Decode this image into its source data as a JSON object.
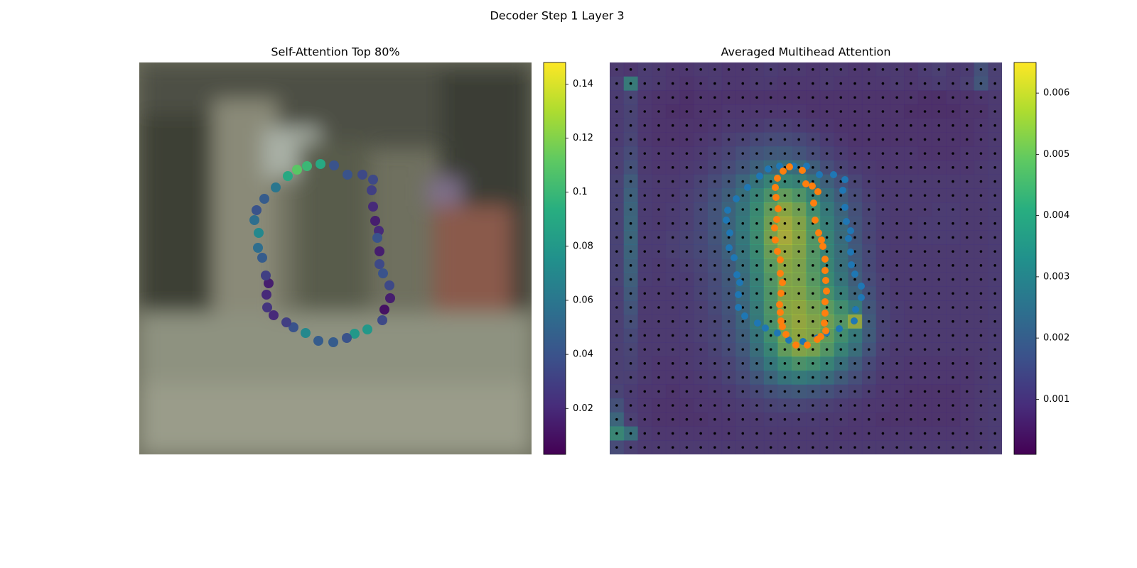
{
  "title": "Decoder Step 1 Layer 3",
  "chart_data": [
    {
      "type": "scatter",
      "title": "Self-Attention Top 80%",
      "colormap": "viridis",
      "xlim": [
        0,
        552
      ],
      "ylim": [
        552,
        0
      ],
      "x": [
        255,
        274,
        293,
        314,
        329,
        327,
        329,
        332,
        337,
        335,
        338,
        338,
        343,
        352,
        353,
        345,
        342,
        321,
        303,
        292,
        273,
        252,
        234,
        217,
        207,
        189,
        180,
        179,
        182,
        178,
        173,
        167,
        168,
        162,
        165,
        176,
        192,
        209,
        222,
        236
      ],
      "y": [
        143,
        145,
        158,
        158,
        165,
        180,
        203,
        223,
        237,
        247,
        266,
        284,
        297,
        314,
        332,
        348,
        363,
        376,
        382,
        388,
        394,
        392,
        381,
        373,
        366,
        356,
        345,
        327,
        311,
        300,
        275,
        261,
        240,
        222,
        208,
        192,
        176,
        160,
        151,
        146
      ],
      "values": [
        0.09,
        0.04,
        0.04,
        0.035,
        0.035,
        0.03,
        0.02,
        0.015,
        0.02,
        0.04,
        0.015,
        0.035,
        0.04,
        0.035,
        0.015,
        0.01,
        0.035,
        0.08,
        0.08,
        0.04,
        0.045,
        0.045,
        0.07,
        0.04,
        0.03,
        0.02,
        0.025,
        0.02,
        0.015,
        0.03,
        0.045,
        0.055,
        0.07,
        0.055,
        0.04,
        0.045,
        0.06,
        0.09,
        0.11,
        0.1
      ],
      "clim": [
        0.003,
        0.148
      ],
      "cticks": [
        0.02,
        0.04,
        0.06,
        0.08,
        0.1,
        0.12,
        0.14
      ]
    },
    {
      "type": "heatmap",
      "title": "Averaged Multihead Attention",
      "colormap": "viridis",
      "xlim": [
        0,
        552
      ],
      "ylim": [
        552,
        0
      ],
      "clim": [
        0.0001,
        0.0065
      ],
      "cticks": [
        0.001,
        0.002,
        0.003,
        0.004,
        0.005,
        0.006
      ],
      "z": [
        [
          0.001,
          0.0009,
          0.0011,
          0.001,
          0.0009,
          0.0009,
          0.001,
          0.001,
          0.0009,
          0.0009,
          0.001,
          0.0011,
          0.001,
          0.001,
          0.0009,
          0.001,
          0.001,
          0.0009,
          0.0009,
          0.001,
          0.001,
          0.0009,
          0.0011,
          0.0012,
          0.001,
          0.0011,
          0.0018,
          0.0012
        ],
        [
          0.0012,
          0.0035,
          0.0011,
          0.001,
          0.0009,
          0.0008,
          0.0009,
          0.001,
          0.0009,
          0.0009,
          0.001,
          0.001,
          0.0009,
          0.0009,
          0.0009,
          0.001,
          0.0009,
          0.0009,
          0.0009,
          0.0009,
          0.001,
          0.0009,
          0.001,
          0.0011,
          0.001,
          0.0012,
          0.002,
          0.0012
        ],
        [
          0.0011,
          0.0014,
          0.0009,
          0.0008,
          0.0008,
          0.0007,
          0.0008,
          0.0008,
          0.0008,
          0.0008,
          0.0008,
          0.0008,
          0.0008,
          0.0008,
          0.0008,
          0.0008,
          0.0008,
          0.0008,
          0.0008,
          0.0008,
          0.0008,
          0.0008,
          0.0007,
          0.0007,
          0.0008,
          0.0008,
          0.0009,
          0.001
        ],
        [
          0.0011,
          0.0013,
          0.0009,
          0.0008,
          0.0007,
          0.0007,
          0.0008,
          0.0008,
          0.0009,
          0.0009,
          0.0009,
          0.0009,
          0.0009,
          0.0009,
          0.0008,
          0.0008,
          0.0008,
          0.0008,
          0.0008,
          0.0008,
          0.0008,
          0.0007,
          0.0007,
          0.0007,
          0.0007,
          0.0008,
          0.0008,
          0.001
        ],
        [
          0.0011,
          0.0013,
          0.0009,
          0.0008,
          0.0008,
          0.0008,
          0.0008,
          0.0009,
          0.001,
          0.001,
          0.0011,
          0.0012,
          0.0012,
          0.0011,
          0.001,
          0.0009,
          0.0008,
          0.0008,
          0.0008,
          0.0008,
          0.0008,
          0.0008,
          0.0008,
          0.0008,
          0.0008,
          0.0008,
          0.0009,
          0.001
        ],
        [
          0.0011,
          0.0014,
          0.0009,
          0.0008,
          0.0008,
          0.0008,
          0.0009,
          0.001,
          0.0012,
          0.0013,
          0.0015,
          0.0016,
          0.0016,
          0.0015,
          0.0013,
          0.0011,
          0.0009,
          0.0008,
          0.0008,
          0.0008,
          0.0008,
          0.0008,
          0.0008,
          0.0008,
          0.0008,
          0.0008,
          0.0009,
          0.001
        ],
        [
          0.0012,
          0.0016,
          0.001,
          0.0009,
          0.0009,
          0.0009,
          0.001,
          0.0012,
          0.0014,
          0.0017,
          0.0019,
          0.0021,
          0.0021,
          0.0019,
          0.0016,
          0.0013,
          0.0011,
          0.0009,
          0.0009,
          0.0009,
          0.0009,
          0.0009,
          0.0008,
          0.0008,
          0.0008,
          0.0009,
          0.0009,
          0.001
        ],
        [
          0.0012,
          0.0018,
          0.001,
          0.0009,
          0.0009,
          0.001,
          0.0011,
          0.0013,
          0.0016,
          0.002,
          0.0024,
          0.0027,
          0.003,
          0.0028,
          0.0023,
          0.0017,
          0.0013,
          0.0011,
          0.001,
          0.0009,
          0.0009,
          0.0009,
          0.0009,
          0.0009,
          0.0009,
          0.0009,
          0.001,
          0.0011
        ],
        [
          0.0013,
          0.0022,
          0.0011,
          0.001,
          0.001,
          0.0011,
          0.0013,
          0.0016,
          0.002,
          0.0026,
          0.0032,
          0.0038,
          0.004,
          0.0037,
          0.0031,
          0.0024,
          0.0018,
          0.0014,
          0.0011,
          0.001,
          0.001,
          0.001,
          0.001,
          0.001,
          0.001,
          0.001,
          0.001,
          0.0011
        ],
        [
          0.0013,
          0.0024,
          0.0011,
          0.001,
          0.001,
          0.0012,
          0.0014,
          0.0018,
          0.0023,
          0.003,
          0.0038,
          0.0045,
          0.005,
          0.0046,
          0.0038,
          0.003,
          0.0022,
          0.0016,
          0.0012,
          0.001,
          0.001,
          0.001,
          0.001,
          0.001,
          0.001,
          0.001,
          0.001,
          0.0011
        ],
        [
          0.0013,
          0.0025,
          0.0011,
          0.001,
          0.0011,
          0.0012,
          0.0015,
          0.0019,
          0.0025,
          0.0032,
          0.0041,
          0.005,
          0.0056,
          0.0052,
          0.0043,
          0.0034,
          0.0025,
          0.0018,
          0.0013,
          0.0011,
          0.001,
          0.001,
          0.001,
          0.0011,
          0.0011,
          0.001,
          0.001,
          0.0011
        ],
        [
          0.0013,
          0.0026,
          0.0011,
          0.001,
          0.0011,
          0.0012,
          0.0015,
          0.0019,
          0.0025,
          0.0033,
          0.0042,
          0.0052,
          0.006,
          0.0055,
          0.0046,
          0.0036,
          0.0027,
          0.0019,
          0.0014,
          0.0011,
          0.001,
          0.001,
          0.0011,
          0.0011,
          0.0011,
          0.001,
          0.001,
          0.0011
        ],
        [
          0.0013,
          0.0026,
          0.0011,
          0.0011,
          0.0012,
          0.0013,
          0.0015,
          0.0019,
          0.0025,
          0.0033,
          0.0042,
          0.0053,
          0.0061,
          0.0056,
          0.0047,
          0.0038,
          0.0028,
          0.002,
          0.0014,
          0.0011,
          0.001,
          0.001,
          0.0011,
          0.0011,
          0.0011,
          0.001,
          0.001,
          0.0011
        ],
        [
          0.0013,
          0.0025,
          0.0011,
          0.0011,
          0.0012,
          0.0013,
          0.0015,
          0.0018,
          0.0024,
          0.0032,
          0.0041,
          0.0051,
          0.0058,
          0.0055,
          0.0047,
          0.0038,
          0.0029,
          0.0021,
          0.0015,
          0.0011,
          0.001,
          0.001,
          0.001,
          0.001,
          0.001,
          0.001,
          0.001,
          0.0011
        ],
        [
          0.0013,
          0.0024,
          0.0011,
          0.001,
          0.0011,
          0.0012,
          0.0014,
          0.0017,
          0.0022,
          0.003,
          0.0039,
          0.0049,
          0.0056,
          0.0054,
          0.0047,
          0.0039,
          0.003,
          0.0022,
          0.0015,
          0.0011,
          0.001,
          0.001,
          0.001,
          0.001,
          0.001,
          0.001,
          0.001,
          0.0011
        ],
        [
          0.0013,
          0.0023,
          0.0011,
          0.001,
          0.0011,
          0.0011,
          0.0013,
          0.0016,
          0.0021,
          0.0028,
          0.0037,
          0.0047,
          0.0055,
          0.0054,
          0.0048,
          0.0041,
          0.0032,
          0.0023,
          0.0016,
          0.0012,
          0.001,
          0.001,
          0.001,
          0.001,
          0.001,
          0.001,
          0.001,
          0.0011
        ],
        [
          0.0012,
          0.0021,
          0.001,
          0.001,
          0.001,
          0.0011,
          0.0013,
          0.0016,
          0.002,
          0.0027,
          0.0036,
          0.0046,
          0.0055,
          0.0055,
          0.005,
          0.0044,
          0.0036,
          0.0026,
          0.0018,
          0.0012,
          0.001,
          0.001,
          0.001,
          0.001,
          0.001,
          0.001,
          0.001,
          0.0011
        ],
        [
          0.0012,
          0.0019,
          0.001,
          0.001,
          0.001,
          0.0011,
          0.0012,
          0.0015,
          0.0019,
          0.0026,
          0.0035,
          0.0046,
          0.0056,
          0.0057,
          0.0053,
          0.0049,
          0.0043,
          0.0035,
          0.002,
          0.0013,
          0.0011,
          0.001,
          0.001,
          0.001,
          0.001,
          0.001,
          0.001,
          0.0011
        ],
        [
          0.0012,
          0.0017,
          0.001,
          0.001,
          0.001,
          0.0011,
          0.0012,
          0.0014,
          0.0018,
          0.0025,
          0.0034,
          0.0045,
          0.0055,
          0.0058,
          0.0055,
          0.0052,
          0.0047,
          0.0058,
          0.0022,
          0.0013,
          0.0011,
          0.001,
          0.001,
          0.001,
          0.001,
          0.001,
          0.001,
          0.0011
        ],
        [
          0.0012,
          0.0015,
          0.001,
          0.001,
          0.001,
          0.0011,
          0.0012,
          0.0014,
          0.0017,
          0.0023,
          0.0032,
          0.0043,
          0.0053,
          0.0057,
          0.0055,
          0.005,
          0.0043,
          0.0034,
          0.0022,
          0.0013,
          0.0011,
          0.001,
          0.001,
          0.001,
          0.001,
          0.001,
          0.001,
          0.0011
        ],
        [
          0.0012,
          0.0014,
          0.001,
          0.001,
          0.001,
          0.001,
          0.0011,
          0.0013,
          0.0016,
          0.0021,
          0.0029,
          0.0039,
          0.005,
          0.0055,
          0.0053,
          0.0047,
          0.0038,
          0.0029,
          0.0019,
          0.0012,
          0.001,
          0.001,
          0.001,
          0.001,
          0.001,
          0.001,
          0.001,
          0.0011
        ],
        [
          0.0012,
          0.0013,
          0.001,
          0.0009,
          0.0009,
          0.001,
          0.0011,
          0.0012,
          0.0014,
          0.0018,
          0.0025,
          0.0033,
          0.0041,
          0.0045,
          0.0043,
          0.0038,
          0.003,
          0.0022,
          0.0015,
          0.0011,
          0.001,
          0.0009,
          0.0009,
          0.0009,
          0.0009,
          0.0009,
          0.001,
          0.0011
        ],
        [
          0.0012,
          0.0012,
          0.001,
          0.0009,
          0.0009,
          0.0009,
          0.001,
          0.0011,
          0.0013,
          0.0016,
          0.002,
          0.0026,
          0.0032,
          0.0034,
          0.0032,
          0.0028,
          0.0022,
          0.0017,
          0.0013,
          0.001,
          0.0009,
          0.0009,
          0.0009,
          0.0009,
          0.0009,
          0.0009,
          0.001,
          0.0011
        ],
        [
          0.0013,
          0.0011,
          0.0009,
          0.0009,
          0.0008,
          0.0009,
          0.0009,
          0.001,
          0.0011,
          0.0013,
          0.0015,
          0.0018,
          0.002,
          0.0021,
          0.002,
          0.0018,
          0.0015,
          0.0013,
          0.0011,
          0.0009,
          0.0009,
          0.0008,
          0.0008,
          0.0008,
          0.0008,
          0.0009,
          0.001,
          0.0011
        ],
        [
          0.0018,
          0.0011,
          0.0009,
          0.0008,
          0.0008,
          0.0008,
          0.0009,
          0.0009,
          0.001,
          0.0011,
          0.0012,
          0.0013,
          0.0014,
          0.0014,
          0.0013,
          0.0012,
          0.0011,
          0.001,
          0.0009,
          0.0009,
          0.0008,
          0.0008,
          0.0008,
          0.0008,
          0.0008,
          0.0009,
          0.001,
          0.0011
        ],
        [
          0.0026,
          0.0012,
          0.0009,
          0.0008,
          0.0008,
          0.0008,
          0.0008,
          0.0009,
          0.0009,
          0.001,
          0.001,
          0.0011,
          0.0011,
          0.0011,
          0.0011,
          0.001,
          0.001,
          0.0009,
          0.0009,
          0.0008,
          0.0008,
          0.0008,
          0.0008,
          0.0008,
          0.0008,
          0.0009,
          0.001,
          0.0011
        ],
        [
          0.004,
          0.003,
          0.001,
          0.0009,
          0.0009,
          0.0009,
          0.0009,
          0.0009,
          0.0009,
          0.001,
          0.001,
          0.001,
          0.001,
          0.001,
          0.001,
          0.001,
          0.0009,
          0.0009,
          0.0009,
          0.0009,
          0.0009,
          0.0009,
          0.0009,
          0.0009,
          0.0009,
          0.0009,
          0.001,
          0.0011
        ],
        [
          0.0016,
          0.0012,
          0.001,
          0.001,
          0.001,
          0.001,
          0.001,
          0.001,
          0.001,
          0.001,
          0.001,
          0.001,
          0.001,
          0.001,
          0.001,
          0.001,
          0.001,
          0.001,
          0.001,
          0.001,
          0.001,
          0.001,
          0.001,
          0.001,
          0.001,
          0.001,
          0.001,
          0.0011
        ]
      ],
      "points": [
        {
          "color": "#1f77b4",
          "x": [
            239,
            259,
            277,
            295,
            315,
            331,
            328,
            331,
            333,
            339,
            336,
            339,
            340,
            345,
            354,
            354,
            346,
            344,
            323,
            305,
            292,
            272,
            252,
            236,
            219,
            208,
            190,
            181,
            181,
            183,
            179,
            175,
            168,
            169,
            164,
            166,
            178,
            194,
            211,
            223
          ],
          "y": [
            146,
            146,
            146,
            158,
            158,
            165,
            180,
            204,
            224,
            237,
            248,
            267,
            285,
            298,
            315,
            331,
            348,
            364,
            375,
            381,
            388,
            393,
            391,
            381,
            374,
            367,
            357,
            345,
            327,
            310,
            299,
            275,
            261,
            240,
            222,
            208,
            192,
            176,
            160,
            150
          ]
        },
        {
          "color": "#ff7f0e",
          "x": [
            253,
            271,
            244,
            236,
            233,
            276,
            285,
            293,
            234,
            287,
            237,
            289,
            235,
            232,
            294,
            298,
            233,
            300,
            236,
            240,
            303,
            303,
            240,
            243,
            304,
            241,
            305,
            303,
            239,
            240,
            303,
            241,
            243,
            302,
            304,
            248,
            297,
            292,
            262,
            278
          ],
          "y": [
            147,
            152,
            153,
            163,
            176,
            171,
            174,
            182,
            190,
            198,
            206,
            222,
            221,
            233,
            240,
            250,
            250,
            259,
            266,
            278,
            277,
            293,
            297,
            310,
            307,
            325,
            322,
            337,
            341,
            352,
            353,
            364,
            372,
            367,
            378,
            383,
            386,
            390,
            398,
            398
          ]
        }
      ]
    }
  ]
}
